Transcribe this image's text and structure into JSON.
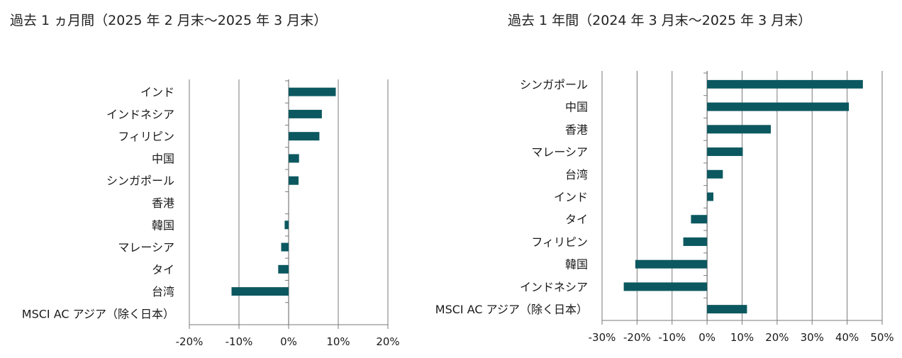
{
  "colors": {
    "bar": "#0c5860",
    "grid": "#7a7a7a",
    "text": "#1a1a1a"
  },
  "chart_data": [
    {
      "type": "bar",
      "orientation": "horizontal",
      "title": "過去 1 ヵ月間（2025 年 2 月末～2025 年 3 月末）",
      "categories": [
        "インド",
        "インドネシア",
        "フィリピン",
        "中国",
        "シンガポール",
        "香港",
        "韓国",
        "マレーシア",
        "タイ",
        "台湾",
        "MSCI AC アジア（除く日本）"
      ],
      "values": [
        9.5,
        6.7,
        6.2,
        2.1,
        2.0,
        0.0,
        -0.8,
        -1.5,
        -2.1,
        -11.5,
        0.0
      ],
      "xlim": [
        -20,
        20
      ],
      "xticks": [
        -20,
        -10,
        0,
        10,
        20
      ],
      "tick_labels": [
        "-20%",
        "-10%",
        "0%",
        "10%",
        "20%"
      ],
      "grid": true
    },
    {
      "type": "bar",
      "orientation": "horizontal",
      "title": "過去 1 年間（2024 年 3 月末～2025 年 3 月末）",
      "categories": [
        "シンガポール",
        "中国",
        "香港",
        "マレーシア",
        "台湾",
        "インド",
        "タイ",
        "フィリピン",
        "韓国",
        "インドネシア",
        "MSCI AC アジア（除く日本）"
      ],
      "values": [
        44.5,
        40.5,
        18.2,
        10.2,
        4.5,
        1.8,
        -4.6,
        -6.8,
        -20.5,
        -23.8,
        11.4
      ],
      "xlim": [
        -30,
        50
      ],
      "xticks": [
        -30,
        -20,
        -10,
        0,
        10,
        20,
        30,
        40,
        50
      ],
      "tick_labels": [
        "-30%",
        "-20%",
        "-10%",
        "0%",
        "10%",
        "20%",
        "30%",
        "40%",
        "50%"
      ],
      "grid": true
    }
  ]
}
